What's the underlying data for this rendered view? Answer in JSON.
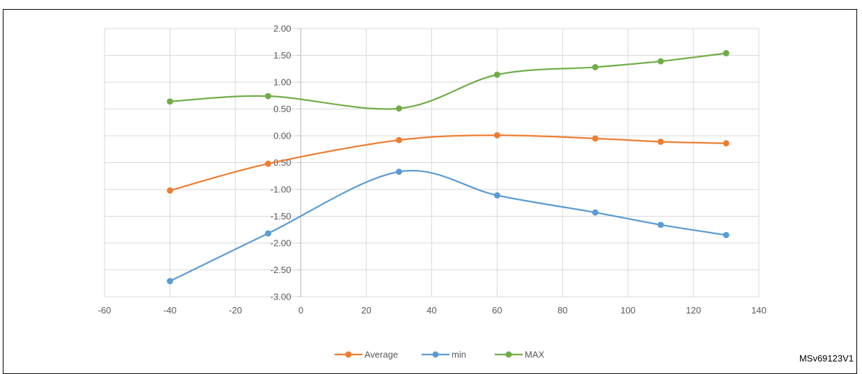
{
  "chart_data": {
    "type": "line",
    "title": "",
    "xlabel": "",
    "ylabel": "",
    "xlim": [
      -60,
      140
    ],
    "ylim": [
      -3.0,
      2.0
    ],
    "x_ticks": [
      "-60",
      "-40",
      "-20",
      "0",
      "20",
      "40",
      "60",
      "80",
      "100",
      "120",
      "140"
    ],
    "y_ticks": [
      "2.00",
      "1.50",
      "1.00",
      "0.50",
      "0.00",
      "-0.50",
      "-1.00",
      "-1.50",
      "-2.00",
      "-2.50",
      "-3.00"
    ],
    "grid": true,
    "legend_position": "bottom",
    "series": [
      {
        "name": "Average",
        "color": "#ED7D31",
        "x": [
          -40,
          -10,
          30,
          60,
          90,
          110,
          130
        ],
        "y": [
          -1.02,
          -0.52,
          -0.08,
          0.01,
          -0.05,
          -0.11,
          -0.14
        ]
      },
      {
        "name": "min",
        "color": "#5B9BD5",
        "x": [
          -40,
          -10,
          30,
          60,
          90,
          110,
          130
        ],
        "y": [
          -2.71,
          -1.82,
          -0.67,
          -1.11,
          -1.43,
          -1.66,
          -1.85
        ]
      },
      {
        "name": "MAX",
        "color": "#70AD47",
        "x": [
          -40,
          -10,
          30,
          60,
          90,
          110,
          130
        ],
        "y": [
          0.64,
          0.74,
          0.51,
          1.14,
          1.28,
          1.39,
          1.54
        ]
      }
    ]
  },
  "figure_code": "MSv69123V1"
}
